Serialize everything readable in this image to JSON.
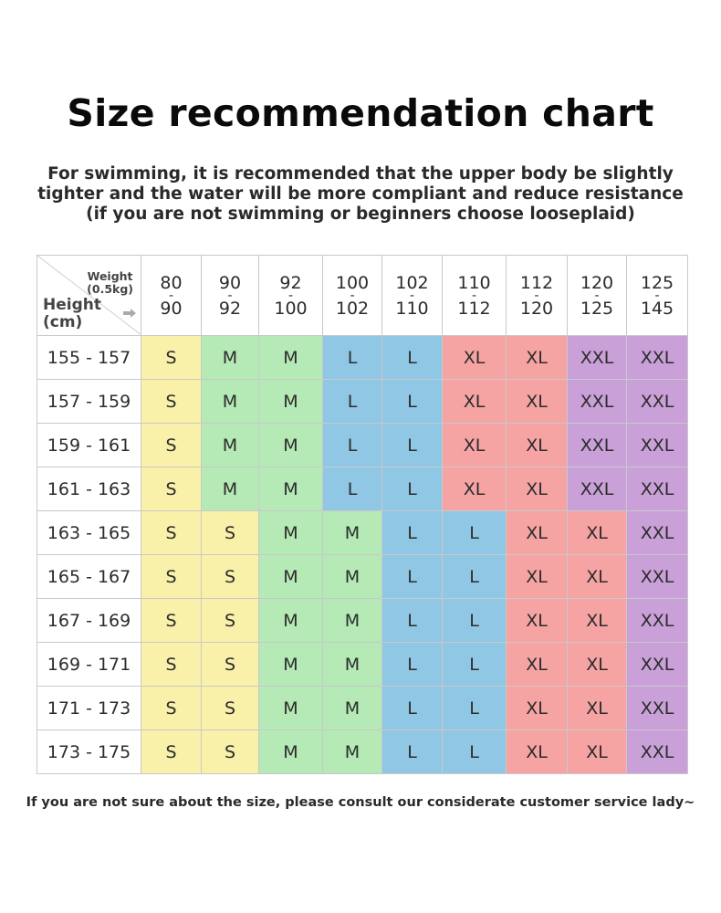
{
  "title": "Size recommendation chart",
  "subtitle": "For swimming, it is recommended that the upper body be slightly tighter and the water will be more compliant and reduce resistance (if you are not swimming or beginners choose looseplaid)",
  "footer": "If you are not sure about the size, please consult our considerate customer service lady~",
  "table": {
    "weight_label": "Weight",
    "weight_unit": "(0.5kg)",
    "height_label": "Height",
    "height_unit": "(cm)",
    "weight_columns": [
      {
        "from": "80",
        "to": "90"
      },
      {
        "from": "90",
        "to": "92"
      },
      {
        "from": "92",
        "to": "100"
      },
      {
        "from": "100",
        "to": "102"
      },
      {
        "from": "102",
        "to": "110"
      },
      {
        "from": "110",
        "to": "112"
      },
      {
        "from": "112",
        "to": "120"
      },
      {
        "from": "120",
        "to": "125"
      },
      {
        "from": "125",
        "to": "145"
      }
    ],
    "range_separator": "-",
    "rows": [
      {
        "height": "155 - 157",
        "sizes": [
          "S",
          "M",
          "M",
          "L",
          "L",
          "XL",
          "XL",
          "XXL",
          "XXL"
        ]
      },
      {
        "height": "157 - 159",
        "sizes": [
          "S",
          "M",
          "M",
          "L",
          "L",
          "XL",
          "XL",
          "XXL",
          "XXL"
        ]
      },
      {
        "height": "159 - 161",
        "sizes": [
          "S",
          "M",
          "M",
          "L",
          "L",
          "XL",
          "XL",
          "XXL",
          "XXL"
        ]
      },
      {
        "height": "161 - 163",
        "sizes": [
          "S",
          "M",
          "M",
          "L",
          "L",
          "XL",
          "XL",
          "XXL",
          "XXL"
        ]
      },
      {
        "height": "163 - 165",
        "sizes": [
          "S",
          "S",
          "M",
          "M",
          "L",
          "L",
          "XL",
          "XL",
          "XXL"
        ]
      },
      {
        "height": "165 - 167",
        "sizes": [
          "S",
          "S",
          "M",
          "M",
          "L",
          "L",
          "XL",
          "XL",
          "XXL"
        ]
      },
      {
        "height": "167 - 169",
        "sizes": [
          "S",
          "S",
          "M",
          "M",
          "L",
          "L",
          "XL",
          "XL",
          "XXL"
        ]
      },
      {
        "height": "169 - 171",
        "sizes": [
          "S",
          "S",
          "M",
          "M",
          "L",
          "L",
          "XL",
          "XL",
          "XXL"
        ]
      },
      {
        "height": "171 - 173",
        "sizes": [
          "S",
          "S",
          "M",
          "M",
          "L",
          "L",
          "XL",
          "XL",
          "XXL"
        ]
      },
      {
        "height": "173 - 175",
        "sizes": [
          "S",
          "S",
          "M",
          "M",
          "L",
          "L",
          "XL",
          "XL",
          "XXL"
        ]
      }
    ]
  },
  "size_colors": {
    "S": "#f9f0a9",
    "M": "#b5e9b5",
    "L": "#8fc7e5",
    "XL": "#f6a3a3",
    "XXL": "#c9a0d8"
  },
  "icons": {
    "corner_arrow": "right-arrow-icon"
  }
}
